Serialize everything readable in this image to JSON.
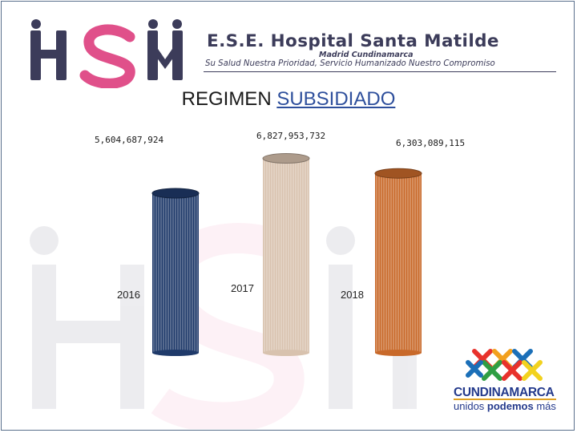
{
  "header": {
    "logo_text": "HSM",
    "hospital_name": "E.S.E. Hospital Santa Matilde",
    "location": "Madrid Cundinamarca",
    "motto": "Su Salud Nuestra Prioridad, Servicio Humanizado Nuestro Compromiso"
  },
  "footer_logo": {
    "name": "CUNDINAMARCA",
    "slogan_pre": "unidos ",
    "slogan_bold": "podemos",
    "slogan_post": " más"
  },
  "colors": {
    "brand_blue": "#3c3c5a",
    "brand_pink": "#e0508a",
    "bar_2016": "#1f3a6a",
    "bar_2017": "#d8c2ae",
    "bar_2018": "#c8692a"
  },
  "chart_data": {
    "type": "bar",
    "title_part1": "REGIMEN",
    "title_part2": "SUBSIDIADO",
    "categories": [
      "2016",
      "2017",
      "2018"
    ],
    "values": [
      5604687924,
      6827953732,
      6303089115
    ],
    "value_labels": [
      "5,604,687,924",
      "6,827,953,732",
      "6,303,089,115"
    ],
    "ylim": [
      0,
      6900000000
    ],
    "grid": false,
    "legend": "none",
    "bar_shape": "cylinder"
  }
}
